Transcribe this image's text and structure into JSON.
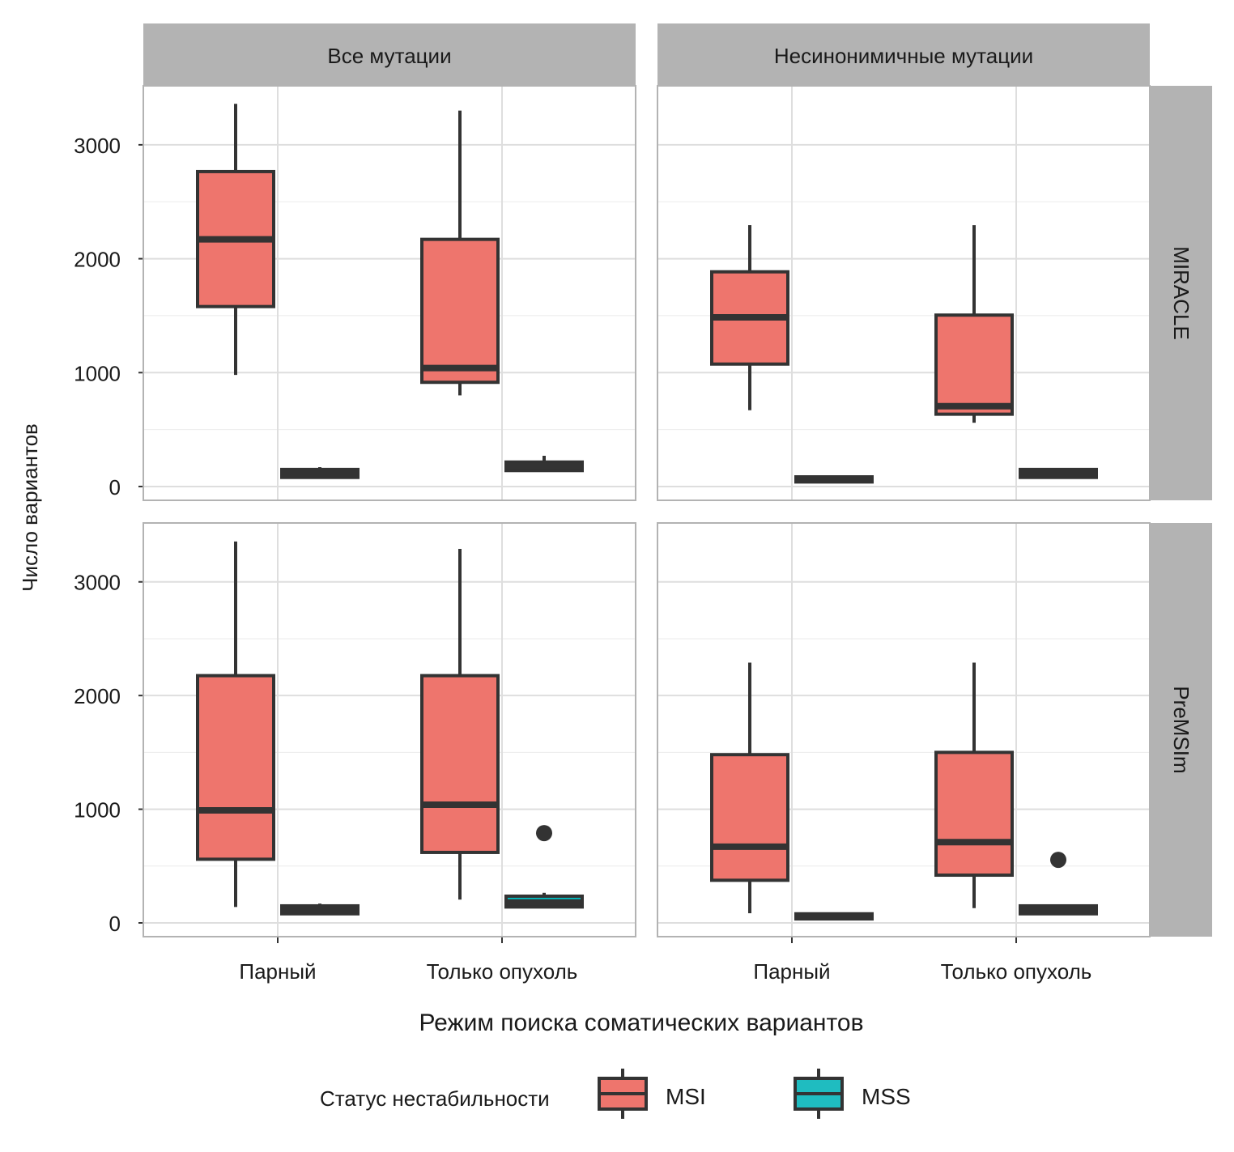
{
  "chart_data": {
    "type": "boxplot",
    "xlabel": "Режим поиска соматических вариантов",
    "ylabel": "Число вариантов",
    "categories": [
      "Парный",
      "Только опухоль"
    ],
    "y_ticks": [
      0,
      1000,
      2000,
      3000
    ],
    "ylim": [
      -121,
      3518
    ],
    "grid": true,
    "col_facets": [
      "Все мутации",
      "Несинонимичные мутации"
    ],
    "row_facets": [
      "MIRACLE",
      "PreMSIm"
    ],
    "legend": {
      "title": "Статус нестабильности",
      "position": "bottom",
      "entries": [
        {
          "name": "MSI",
          "color": "#F8766D"
        },
        {
          "name": "MSS",
          "color": "#00BFC4"
        }
      ]
    },
    "panels": [
      {
        "row": "MIRACLE",
        "col": "Все мутации",
        "boxes": [
          {
            "category": "Парный",
            "group": "MSI",
            "min": 980,
            "q1": 1580,
            "median": 2170,
            "q3": 2765,
            "max": 3360,
            "outliers": []
          },
          {
            "category": "Парный",
            "group": "MSS",
            "min": 80,
            "q1": 80,
            "median": 110,
            "q3": 150,
            "max": 170,
            "outliers": []
          },
          {
            "category": "Только опухоль",
            "group": "MSI",
            "min": 800,
            "q1": 915,
            "median": 1040,
            "q3": 2170,
            "max": 3300,
            "outliers": []
          },
          {
            "category": "Только опухоль",
            "group": "MSS",
            "min": 140,
            "q1": 140,
            "median": 180,
            "q3": 215,
            "max": 270,
            "outliers": []
          }
        ]
      },
      {
        "row": "MIRACLE",
        "col": "Несинонимичные мутации",
        "boxes": [
          {
            "category": "Парный",
            "group": "MSI",
            "min": 670,
            "q1": 1075,
            "median": 1485,
            "q3": 1885,
            "max": 2295,
            "outliers": []
          },
          {
            "category": "Парный",
            "group": "MSS",
            "min": 40,
            "q1": 40,
            "median": 60,
            "q3": 85,
            "max": 85,
            "outliers": []
          },
          {
            "category": "Только опухоль",
            "group": "MSI",
            "min": 560,
            "q1": 635,
            "median": 705,
            "q3": 1505,
            "max": 2295,
            "outliers": []
          },
          {
            "category": "Только опухоль",
            "group": "MSS",
            "min": 80,
            "q1": 80,
            "median": 110,
            "q3": 150,
            "max": 150,
            "outliers": []
          }
        ]
      },
      {
        "row": "PreMSIm",
        "col": "Все мутации",
        "boxes": [
          {
            "category": "Парный",
            "group": "MSI",
            "min": 140,
            "q1": 560,
            "median": 990,
            "q3": 2175,
            "max": 3355,
            "outliers": []
          },
          {
            "category": "Парный",
            "group": "MSS",
            "min": 80,
            "q1": 80,
            "median": 110,
            "q3": 150,
            "max": 170,
            "outliers": []
          },
          {
            "category": "Только опухоль",
            "group": "MSI",
            "min": 205,
            "q1": 620,
            "median": 1040,
            "q3": 2175,
            "max": 3290,
            "outliers": []
          },
          {
            "category": "Только опухоль",
            "group": "MSS",
            "min": 140,
            "q1": 140,
            "median": 180,
            "q3": 235,
            "max": 265,
            "outliers": [
              790
            ]
          }
        ]
      },
      {
        "row": "PreMSIm",
        "col": "Несинонимичные мутации",
        "boxes": [
          {
            "category": "Парный",
            "group": "MSI",
            "min": 85,
            "q1": 375,
            "median": 670,
            "q3": 1480,
            "max": 2290,
            "outliers": []
          },
          {
            "category": "Парный",
            "group": "MSS",
            "min": 35,
            "q1": 35,
            "median": 55,
            "q3": 80,
            "max": 80,
            "outliers": []
          },
          {
            "category": "Только опухоль",
            "group": "MSI",
            "min": 130,
            "q1": 420,
            "median": 710,
            "q3": 1500,
            "max": 2290,
            "outliers": []
          },
          {
            "category": "Только опухоль",
            "group": "MSS",
            "min": 80,
            "q1": 80,
            "median": 110,
            "q3": 150,
            "max": 155,
            "outliers": [
              555
            ]
          }
        ]
      }
    ]
  }
}
